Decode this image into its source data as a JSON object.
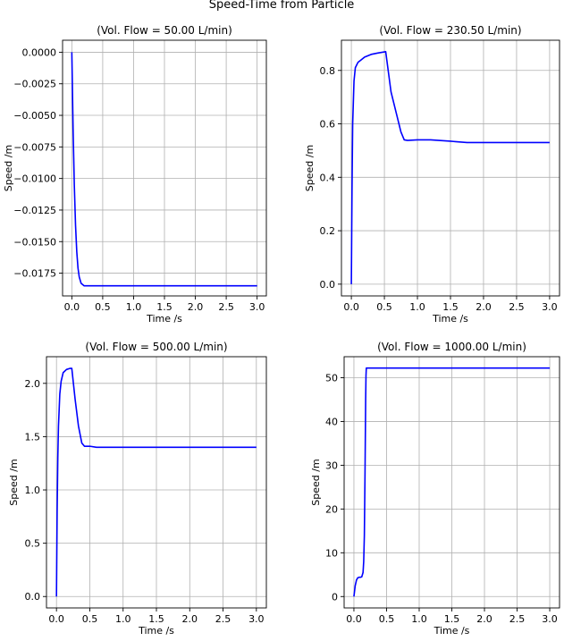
{
  "figure": {
    "title": "Speed-Time from Particle"
  },
  "chart_data": [
    {
      "type": "line",
      "title": "(Vol. Flow = 50.00 L/min)",
      "xlabel": "Time /s",
      "ylabel": "Speed /m",
      "xlim": [
        -0.15,
        3.15
      ],
      "ylim": [
        -0.0193,
        0.00095
      ],
      "xticks": [
        0.0,
        0.5,
        1.0,
        1.5,
        2.0,
        2.5,
        3.0
      ],
      "xtick_labels": [
        "0.0",
        "0.5",
        "1.0",
        "1.5",
        "2.0",
        "2.5",
        "3.0"
      ],
      "yticks": [
        0.0,
        -0.0025,
        -0.005,
        -0.0075,
        -0.01,
        -0.0125,
        -0.015,
        -0.0175
      ],
      "ytick_labels": [
        "0.0000",
        "−0.0025",
        "−0.0050",
        "−0.0075",
        "−0.0100",
        "−0.0125",
        "−0.0150",
        "−0.0175"
      ],
      "grid": true,
      "color": "#0000ff",
      "series": [
        {
          "x": [
            0.0,
            0.02,
            0.04,
            0.06,
            0.08,
            0.1,
            0.12,
            0.15,
            0.2,
            0.3,
            1.0,
            2.0,
            3.0
          ],
          "y": [
            0.0,
            -0.006,
            -0.0105,
            -0.0137,
            -0.0158,
            -0.0171,
            -0.0178,
            -0.0183,
            -0.0185,
            -0.0185,
            -0.0185,
            -0.0185,
            -0.0185
          ]
        }
      ]
    },
    {
      "type": "line",
      "title": "(Vol. Flow = 230.50 L/min)",
      "xlabel": "Time /s",
      "ylabel": "Speed /m",
      "xlim": [
        -0.15,
        3.15
      ],
      "ylim": [
        -0.044,
        0.913
      ],
      "xticks": [
        0.0,
        0.5,
        1.0,
        1.5,
        2.0,
        2.5,
        3.0
      ],
      "xtick_labels": [
        "0.0",
        "0.5",
        "1.0",
        "1.5",
        "2.0",
        "2.5",
        "3.0"
      ],
      "yticks": [
        0.0,
        0.2,
        0.4,
        0.6,
        0.8
      ],
      "ytick_labels": [
        "0.0",
        "0.2",
        "0.4",
        "0.6",
        "0.8"
      ],
      "grid": true,
      "color": "#0000ff",
      "series": [
        {
          "x": [
            0.0,
            0.01,
            0.02,
            0.04,
            0.06,
            0.08,
            0.1,
            0.15,
            0.2,
            0.3,
            0.4,
            0.52,
            0.6,
            0.7,
            0.75,
            0.8,
            0.85,
            1.0,
            1.2,
            1.5,
            1.75,
            2.0,
            3.0
          ],
          "y": [
            0.0,
            0.35,
            0.6,
            0.76,
            0.81,
            0.82,
            0.83,
            0.84,
            0.85,
            0.86,
            0.865,
            0.87,
            0.72,
            0.62,
            0.57,
            0.54,
            0.538,
            0.54,
            0.54,
            0.535,
            0.53,
            0.53,
            0.53
          ]
        }
      ]
    },
    {
      "type": "line",
      "title": "(Vol. Flow = 500.00 L/min)",
      "xlabel": "Time /s",
      "ylabel": "Speed /m",
      "xlim": [
        -0.15,
        3.15
      ],
      "ylim": [
        -0.107,
        2.25
      ],
      "xticks": [
        0.0,
        0.5,
        1.0,
        1.5,
        2.0,
        2.5,
        3.0
      ],
      "xtick_labels": [
        "0.0",
        "0.5",
        "1.0",
        "1.5",
        "2.0",
        "2.5",
        "3.0"
      ],
      "yticks": [
        0.0,
        0.5,
        1.0,
        1.5,
        2.0
      ],
      "ytick_labels": [
        "0.0",
        "0.5",
        "1.0",
        "1.5",
        "2.0"
      ],
      "grid": true,
      "color": "#0000ff",
      "series": [
        {
          "x": [
            0.0,
            0.01,
            0.02,
            0.03,
            0.05,
            0.07,
            0.1,
            0.15,
            0.2,
            0.23,
            0.28,
            0.33,
            0.38,
            0.42,
            0.5,
            0.6,
            0.8,
            1.0,
            2.0,
            3.0
          ],
          "y": [
            0.0,
            0.8,
            1.3,
            1.6,
            1.9,
            2.02,
            2.1,
            2.13,
            2.14,
            2.14,
            1.85,
            1.6,
            1.44,
            1.41,
            1.41,
            1.4,
            1.4,
            1.4,
            1.4,
            1.4
          ]
        }
      ]
    },
    {
      "type": "line",
      "title": "(Vol. Flow = 1000.00 L/min)",
      "xlabel": "Time /s",
      "ylabel": "Speed /m",
      "xlim": [
        -0.15,
        3.15
      ],
      "ylim": [
        -2.6,
        54.8
      ],
      "xticks": [
        0.0,
        0.5,
        1.0,
        1.5,
        2.0,
        2.5,
        3.0
      ],
      "xtick_labels": [
        "0.0",
        "0.5",
        "1.0",
        "1.5",
        "2.0",
        "2.5",
        "3.0"
      ],
      "yticks": [
        0,
        10,
        20,
        30,
        40,
        50
      ],
      "ytick_labels": [
        "0",
        "10",
        "20",
        "30",
        "40",
        "50"
      ],
      "grid": true,
      "color": "#0000ff",
      "series": [
        {
          "x": [
            0.0,
            0.02,
            0.04,
            0.06,
            0.08,
            0.1,
            0.12,
            0.14,
            0.15,
            0.16,
            0.17,
            0.18,
            0.185,
            0.19,
            0.2,
            0.5,
            1.0,
            2.0,
            3.0
          ],
          "y": [
            0.0,
            2.5,
            3.8,
            4.3,
            4.4,
            4.4,
            4.5,
            5.5,
            8.0,
            14.0,
            28.0,
            45.0,
            50.5,
            52.2,
            52.2,
            52.2,
            52.2,
            52.2,
            52.2
          ]
        }
      ]
    }
  ]
}
